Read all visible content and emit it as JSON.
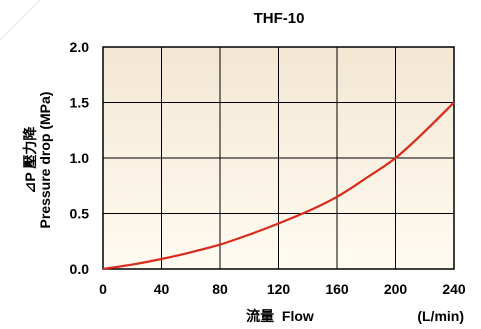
{
  "chart_data": {
    "type": "line",
    "title": "THF-10",
    "xlabel": "流量  Flow",
    "xunit": "(L/min)",
    "ylabel_line1": "⊿P 壓力降",
    "ylabel_line2": "Pressure drop (MPa)",
    "xlim": [
      0,
      240
    ],
    "ylim": [
      0,
      2.0
    ],
    "xticks": [
      "0",
      "40",
      "80",
      "120",
      "160",
      "200",
      "240"
    ],
    "yticks": [
      "0.0",
      "0.5",
      "1.0",
      "1.5",
      "2.0"
    ],
    "grid": true,
    "colors": {
      "curve": "#d92a1c",
      "plot_top": "#f3e7d3",
      "plot_bottom": "#fffbf1",
      "grid": "#000000"
    },
    "series": [
      {
        "x": [
          0,
          20,
          40,
          60,
          80,
          100,
          120,
          140,
          160,
          180,
          200,
          220,
          240
        ],
        "y": [
          0.0,
          0.04,
          0.09,
          0.15,
          0.22,
          0.31,
          0.41,
          0.52,
          0.65,
          0.82,
          1.0,
          1.24,
          1.5
        ]
      }
    ]
  }
}
